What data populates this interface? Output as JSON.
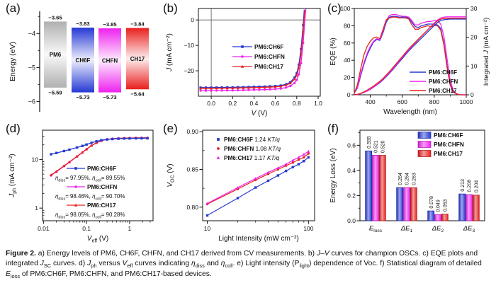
{
  "colors": {
    "blue": "#2639d4",
    "magenta": "#ee22ee",
    "red": "#e8201e",
    "gray": "#b0b0b0",
    "axis": "#111111"
  },
  "panels": {
    "a": {
      "label": "(a)"
    },
    "b": {
      "label": "(b)"
    },
    "c": {
      "label": "(c)"
    },
    "d": {
      "label": "(d)"
    },
    "e": {
      "label": "(e)"
    },
    "f": {
      "label": "(f)"
    }
  },
  "caption": {
    "segments": [
      {
        "b": "Figure 2."
      },
      {
        "t": " a) Energy levels of PM6, CH6F, CHFN, and CH17 derived from CV measurements. b) "
      },
      {
        "i": "J"
      },
      {
        "t": "–"
      },
      {
        "i": "V"
      },
      {
        "t": " curves for champion OSCs. c) EQE plots and integrated "
      },
      {
        "i": "J"
      },
      {
        "sub": "SC"
      },
      {
        "t": " curves. d) "
      },
      {
        "i": "J"
      },
      {
        "sub": "ph"
      },
      {
        "t": " versus "
      },
      {
        "i": "V"
      },
      {
        "sub": "eff"
      },
      {
        "t": " curves indicating "
      },
      {
        "i": "η"
      },
      {
        "sub": "diss"
      },
      {
        "t": " and "
      },
      {
        "i": "η"
      },
      {
        "sub": "coll"
      },
      {
        "t": ". e) Light intensity (P"
      },
      {
        "sub": "light"
      },
      {
        "t": ") dependence of Voc. f) Statistical diagram of detailed "
      },
      {
        "i": "E"
      },
      {
        "sub": "loss"
      },
      {
        "t": " of PM6:CH6F, PM6:CHFN, and PM6:CH17-based devices."
      }
    ]
  },
  "chart_data": [
    {
      "id": "a",
      "type": "energy-levels",
      "ylabel": "Energy (eV)",
      "ylim": [
        -3.35,
        -6.3
      ],
      "yticks": [
        -4,
        -5,
        -6
      ],
      "yticks_minor": [
        -3.5,
        -4.5,
        -5.5
      ],
      "materials": [
        {
          "name": "PM6",
          "lumo": -3.65,
          "homo": -5.59,
          "color": "gray"
        },
        {
          "name": "CH6F",
          "lumo": -3.83,
          "homo": -5.73,
          "color": "blue"
        },
        {
          "name": "CHFN",
          "lumo": -3.85,
          "homo": -5.73,
          "color": "magenta"
        },
        {
          "name": "CH17",
          "lumo": -3.84,
          "homo": -5.64,
          "color": "red"
        }
      ]
    },
    {
      "id": "b",
      "type": "line",
      "xlabel_segments": [
        {
          "i": "V"
        },
        {
          "t": " (V)"
        }
      ],
      "ylabel_segments": [
        {
          "i": "J"
        },
        {
          "t": " (mA cm⁻²)"
        }
      ],
      "xlim": [
        -0.12,
        1.02
      ],
      "ylim": [
        -30,
        4.5
      ],
      "xticks": [
        0.0,
        0.2,
        0.4,
        0.6,
        0.8,
        1.0
      ],
      "yticks": [
        0,
        -10,
        -20
      ],
      "zero_lines": true,
      "series": [
        {
          "name": "PM6:CH6F",
          "color": "blue",
          "marker": "square",
          "x": [
            -0.1,
            -0.05,
            0.0,
            0.05,
            0.1,
            0.15,
            0.2,
            0.25,
            0.3,
            0.35,
            0.4,
            0.45,
            0.5,
            0.55,
            0.6,
            0.65,
            0.7,
            0.74,
            0.78,
            0.8,
            0.82,
            0.84,
            0.86,
            0.87
          ],
          "y": [
            -26.6,
            -26.6,
            -26.6,
            -26.55,
            -26.55,
            -26.5,
            -26.5,
            -26.45,
            -26.4,
            -26.35,
            -26.3,
            -26.25,
            -26.2,
            -26.1,
            -26.0,
            -25.8,
            -25.3,
            -24.5,
            -22.6,
            -20.9,
            -17.6,
            -11.5,
            -2.0,
            4.0
          ]
        },
        {
          "name": "PM6:CHFN",
          "color": "magenta",
          "marker": "circle",
          "x": [
            -0.1,
            -0.05,
            0.0,
            0.05,
            0.1,
            0.15,
            0.2,
            0.25,
            0.3,
            0.35,
            0.4,
            0.45,
            0.5,
            0.55,
            0.6,
            0.65,
            0.7,
            0.74,
            0.78,
            0.8,
            0.82,
            0.84,
            0.86,
            0.88,
            0.886
          ],
          "y": [
            -27.8,
            -27.8,
            -27.8,
            -27.75,
            -27.75,
            -27.7,
            -27.7,
            -27.65,
            -27.6,
            -27.55,
            -27.5,
            -27.45,
            -27.4,
            -27.3,
            -27.2,
            -27.0,
            -26.6,
            -26.0,
            -24.8,
            -23.6,
            -21.4,
            -17.0,
            -9.0,
            2.0,
            4.4
          ]
        },
        {
          "name": "PM6:CH17",
          "color": "red",
          "marker": "triangle",
          "x": [
            -0.1,
            -0.05,
            0.0,
            0.05,
            0.1,
            0.15,
            0.2,
            0.25,
            0.3,
            0.35,
            0.4,
            0.45,
            0.5,
            0.55,
            0.6,
            0.65,
            0.7,
            0.74,
            0.78,
            0.8,
            0.82,
            0.84,
            0.86,
            0.875
          ],
          "y": [
            -26.9,
            -26.9,
            -26.9,
            -26.85,
            -26.85,
            -26.8,
            -26.8,
            -26.75,
            -26.7,
            -26.65,
            -26.6,
            -26.55,
            -26.5,
            -26.4,
            -26.3,
            -26.1,
            -25.6,
            -24.9,
            -23.3,
            -21.8,
            -18.8,
            -13.5,
            -4.5,
            4.0
          ]
        }
      ]
    },
    {
      "id": "c",
      "type": "dual-line",
      "xlabel": "Wavelength (nm)",
      "ylabel_left": "EQE (%)",
      "ylabel_right_segments": [
        {
          "t": "Integrated "
        },
        {
          "i": "J"
        },
        {
          "t": " (mA cm⁻²)"
        }
      ],
      "xlim": [
        300,
        1000
      ],
      "ylim_left": [
        0,
        100
      ],
      "ylim_right": [
        0,
        30
      ],
      "xticks": [
        400,
        600,
        800,
        1000
      ],
      "xticks_minor": [
        500,
        700,
        900
      ],
      "yticks_left": [
        0,
        20,
        40,
        60,
        80,
        100
      ],
      "yticks_right": [
        0,
        10,
        20,
        30
      ],
      "wavelengths": [
        300,
        320,
        340,
        360,
        380,
        400,
        420,
        440,
        460,
        480,
        500,
        520,
        540,
        560,
        580,
        600,
        620,
        640,
        660,
        680,
        700,
        720,
        740,
        760,
        780,
        800,
        820,
        840,
        860,
        880,
        900,
        920,
        940,
        960,
        980,
        1000
      ],
      "series_eqe": [
        {
          "name": "PM6:CH6F",
          "color": "blue",
          "values": [
            2,
            8,
            22,
            35,
            46,
            54,
            61,
            64,
            63,
            72,
            84,
            90,
            91,
            91,
            90,
            90,
            90,
            89,
            84,
            79,
            78,
            80,
            81,
            82,
            82,
            82,
            81,
            77,
            60,
            34,
            12,
            4,
            1,
            0,
            0,
            0
          ]
        },
        {
          "name": "PM6:CHFN",
          "color": "magenta",
          "values": [
            2,
            9,
            24,
            37,
            48,
            56,
            62,
            65,
            64,
            74,
            86,
            92,
            93,
            93,
            92,
            91,
            91,
            90,
            86,
            81,
            81,
            83,
            84,
            85,
            85,
            86,
            86,
            82,
            68,
            42,
            16,
            5,
            1,
            0,
            0,
            0
          ]
        },
        {
          "name": "PM6:CH17",
          "color": "red",
          "values": [
            2,
            12,
            30,
            46,
            56,
            62,
            66,
            67,
            65,
            76,
            87,
            89,
            90,
            90,
            89,
            89,
            89,
            88,
            81,
            76,
            76,
            78,
            79,
            80,
            79,
            80,
            80,
            75,
            58,
            32,
            11,
            3,
            1,
            0,
            0,
            0
          ]
        }
      ],
      "series_integrated": [
        {
          "name": "PM6:CH6F",
          "color": "blue",
          "values": [
            0,
            0.1,
            0.4,
            0.8,
            1.3,
            1.9,
            2.6,
            3.4,
            4.2,
            5.2,
            6.3,
            7.5,
            8.7,
            10.0,
            11.3,
            12.6,
            13.9,
            15.2,
            16.4,
            17.5,
            18.6,
            19.7,
            20.8,
            21.9,
            23.0,
            24.1,
            25.1,
            25.8,
            26.1,
            26.25,
            26.3,
            26.3,
            26.3,
            26.3,
            26.3,
            26.3
          ]
        },
        {
          "name": "PM6:CHFN",
          "color": "magenta",
          "values": [
            0,
            0.1,
            0.4,
            0.8,
            1.3,
            1.9,
            2.7,
            3.5,
            4.4,
            5.4,
            6.5,
            7.7,
            9.0,
            10.3,
            11.6,
            13.0,
            14.3,
            15.6,
            16.9,
            18.0,
            19.2,
            20.3,
            21.5,
            22.6,
            23.8,
            24.9,
            26.0,
            26.7,
            27.0,
            27.1,
            27.1,
            27.1,
            27.1,
            27.1,
            27.1,
            27.1
          ]
        },
        {
          "name": "PM6:CH17",
          "color": "red",
          "values": [
            0,
            0.2,
            0.5,
            1.0,
            1.6,
            2.3,
            3.0,
            3.9,
            4.7,
            5.7,
            6.9,
            8.1,
            9.4,
            10.7,
            12.0,
            13.3,
            14.6,
            15.9,
            17.1,
            18.2,
            19.3,
            20.4,
            21.5,
            22.6,
            23.7,
            24.7,
            25.7,
            26.3,
            26.5,
            26.6,
            26.6,
            26.6,
            26.6,
            26.6,
            26.6,
            26.6
          ]
        }
      ]
    },
    {
      "id": "d",
      "type": "line-loglog",
      "xlabel_segments": [
        {
          "i": "V"
        },
        {
          "sub": "eff"
        },
        {
          "t": " (V)"
        }
      ],
      "ylabel_segments": [
        {
          "i": "J"
        },
        {
          "sub": "ph"
        },
        {
          "t": " (mA cm⁻²)"
        }
      ],
      "xlim": [
        0.0095,
        3.5
      ],
      "ylim": [
        0.55,
        40
      ],
      "xticks": [
        0.01,
        0.1,
        1
      ],
      "yticks": [
        1,
        10
      ],
      "series": [
        {
          "name": "PM6:CH6F",
          "color": "blue",
          "marker": "square",
          "eta_diss": "97.95%",
          "eta_coll": "89.55%",
          "x": [
            0.015,
            0.02,
            0.03,
            0.04,
            0.06,
            0.08,
            0.1,
            0.13,
            0.17,
            0.22,
            0.3,
            0.4,
            0.55,
            0.75,
            1.0,
            1.4,
            1.9,
            2.6
          ],
          "y": [
            12.8,
            13.6,
            14.9,
            15.9,
            17.6,
            19.0,
            20.3,
            22.0,
            23.6,
            24.9,
            25.8,
            26.3,
            26.7,
            26.9,
            27.0,
            27.1,
            27.2,
            27.2
          ]
        },
        {
          "name": "PM6:CHFN",
          "color": "magenta",
          "marker": "circle",
          "eta_diss": "98.46%",
          "eta_coll": "90.70%",
          "x": [
            0.015,
            0.02,
            0.03,
            0.04,
            0.06,
            0.08,
            0.1,
            0.13,
            0.17,
            0.22,
            0.3,
            0.4,
            0.55,
            0.75,
            1.0,
            1.4,
            1.9,
            2.6
          ],
          "y": [
            4.7,
            5.6,
            7.3,
            8.8,
            11.5,
            13.9,
            16.2,
            19.2,
            22.0,
            24.3,
            25.9,
            26.6,
            27.1,
            27.4,
            27.6,
            27.7,
            27.8,
            27.8
          ]
        },
        {
          "name": "PM6:CH17",
          "color": "red",
          "marker": "triangle",
          "eta_diss": "98.05%",
          "eta_coll": "90.28%",
          "x": [
            0.015,
            0.02,
            0.03,
            0.04,
            0.06,
            0.08,
            0.1,
            0.13,
            0.17,
            0.22,
            0.3,
            0.4,
            0.55,
            0.75,
            1.0,
            1.4,
            1.9,
            2.6
          ],
          "y": [
            4.8,
            5.7,
            7.4,
            8.9,
            11.6,
            14.0,
            16.3,
            19.3,
            22.1,
            24.4,
            26.0,
            26.7,
            27.2,
            27.5,
            27.7,
            27.8,
            27.9,
            27.9
          ]
        }
      ]
    },
    {
      "id": "e",
      "type": "scatter-semilogx",
      "xlabel": "Light Intensity (mW cm⁻²)",
      "ylabel_segments": [
        {
          "i": "V"
        },
        {
          "sub": "OC"
        },
        {
          "t": " (V)"
        }
      ],
      "xlim": [
        9,
        115
      ],
      "ylim": [
        0.782,
        0.902
      ],
      "xticks": [
        10,
        100
      ],
      "xticks_minor": [
        20,
        30,
        40,
        50,
        60,
        70,
        80,
        90
      ],
      "yticks": [
        0.8,
        0.85,
        0.9
      ],
      "yticks_minor": [
        0.825,
        0.875
      ],
      "slope_unit": "KT/q",
      "series": [
        {
          "name": "PM6:CH6F",
          "slope": "1.24",
          "color": "blue",
          "marker": "square",
          "x": [
            10,
            20,
            30,
            40,
            50,
            60,
            70,
            80,
            90,
            100
          ],
          "y": [
            0.789,
            0.812,
            0.826,
            0.835,
            0.842,
            0.848,
            0.853,
            0.857,
            0.861,
            0.866
          ]
        },
        {
          "name": "PM6:CHFN",
          "slope": "1.08",
          "color": "red",
          "marker": "circle",
          "x": [
            10,
            20,
            30,
            40,
            50,
            60,
            70,
            80,
            90,
            100
          ],
          "y": [
            0.804,
            0.824,
            0.836,
            0.844,
            0.85,
            0.855,
            0.859,
            0.863,
            0.866,
            0.871
          ]
        },
        {
          "name": "PM6:CH17",
          "slope": "1.17",
          "color": "magenta",
          "marker": "triangle",
          "x": [
            10,
            20,
            30,
            40,
            50,
            60,
            70,
            80,
            90,
            100
          ],
          "y": [
            0.805,
            0.826,
            0.838,
            0.846,
            0.852,
            0.857,
            0.862,
            0.866,
            0.87,
            0.874
          ]
        }
      ]
    },
    {
      "id": "f",
      "type": "bar",
      "ylabel": "Energy Loss (eV)",
      "ylim": [
        0,
        0.72
      ],
      "yticks": [
        0.0,
        0.2,
        0.4,
        0.6
      ],
      "yticks_minor": [
        0.1,
        0.3,
        0.5,
        0.7
      ],
      "categories": [
        [
          {
            "i": "E"
          },
          {
            "sub": "loss"
          }
        ],
        [
          {
            "i": "ΔE"
          },
          {
            "sub": "1"
          }
        ],
        [
          {
            "i": "ΔE"
          },
          {
            "sub": "2"
          }
        ],
        [
          {
            "i": "ΔE"
          },
          {
            "sub": "3"
          }
        ]
      ],
      "series": [
        {
          "name": "PM6:CH6F",
          "color": "blue",
          "values": [
            0.555,
            0.264,
            0.078,
            0.213
          ]
        },
        {
          "name": "PM6:CHFN",
          "color": "magenta",
          "values": [
            0.521,
            0.264,
            0.049,
            0.208
          ]
        },
        {
          "name": "PM6:CH17",
          "color": "red",
          "values": [
            0.52,
            0.263,
            0.053,
            0.204
          ]
        }
      ]
    }
  ]
}
